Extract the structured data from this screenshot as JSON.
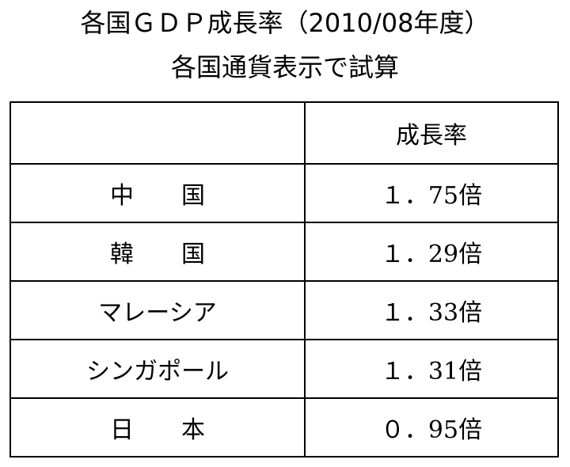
{
  "header": {
    "title": "各国ＧＤＰ成長率（2010/08年度）",
    "subtitle": "各国通貨表示で試算"
  },
  "table": {
    "columns": [
      "成長率"
    ],
    "rows": [
      [
        "中　　国",
        "１．75倍"
      ],
      [
        "韓　　国",
        "１．29倍"
      ],
      [
        "マレーシア",
        "１．33倍"
      ],
      [
        "シンガポール",
        "１．31倍"
      ],
      [
        "日　　本",
        "０．95倍"
      ]
    ]
  }
}
